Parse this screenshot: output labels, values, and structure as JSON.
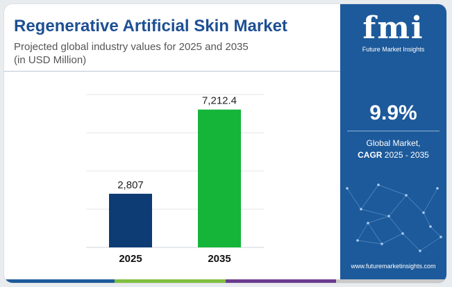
{
  "title": "Regenerative Artificial Skin Market",
  "subtitle_line1": "Projected global industry values for 2025 and 2035",
  "subtitle_line2": "(in USD Million)",
  "chart_data": {
    "type": "bar",
    "categories": [
      "2025",
      "2035"
    ],
    "values": [
      2807,
      7212.4
    ],
    "value_labels": [
      "2,807",
      "7,212.4"
    ],
    "colors": [
      "#0d3b73",
      "#15b53a"
    ],
    "ylim": [
      0,
      8000
    ],
    "grid": true
  },
  "side_panel": {
    "logo_text": "fmi",
    "logo_subtitle": "Future Market Insights",
    "cagr_value": "9.9%",
    "cagr_label_line1": "Global Market,",
    "cagr_label_bold": "CAGR",
    "cagr_label_rest": " 2025 - 2035",
    "url": "www.futuremarketinsights.com",
    "bg_color": "#1d5a9b"
  },
  "bottom_bar_colors": [
    "#1d5a9b",
    "#7fbf3f",
    "#6b3b8f",
    "#c9c9c9"
  ]
}
